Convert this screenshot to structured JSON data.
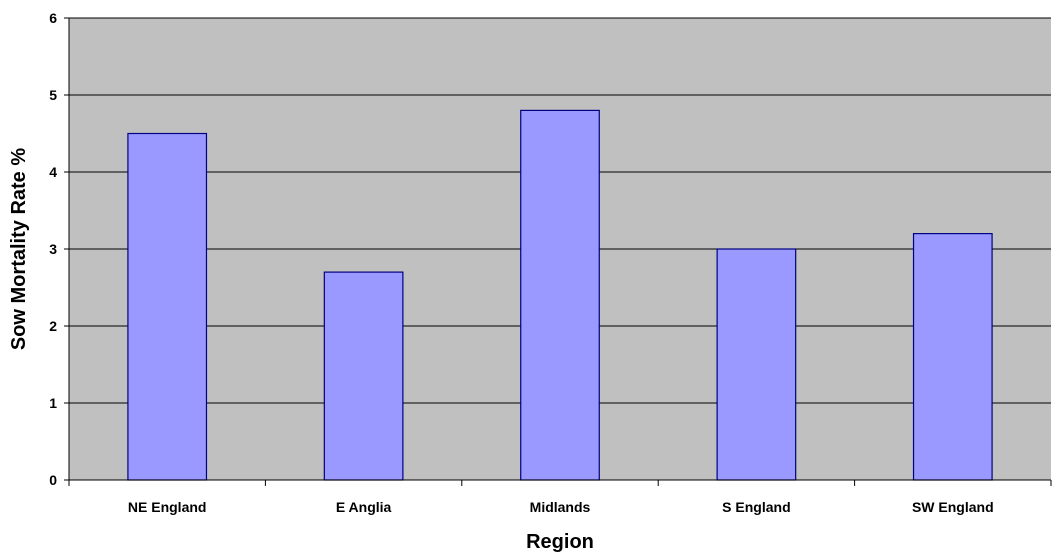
{
  "chart_data": {
    "type": "bar",
    "title": "",
    "xlabel": "Region",
    "ylabel": "Sow Mortality Rate %",
    "categories": [
      "NE England",
      "E Anglia",
      "Midlands",
      "S England",
      "SW England"
    ],
    "values": [
      4.5,
      2.7,
      4.8,
      3.0,
      3.2
    ],
    "ylim": [
      0,
      6
    ],
    "yticks": [
      "0",
      "1",
      "2",
      "3",
      "4",
      "5",
      "6"
    ],
    "grid": true,
    "legend": "none",
    "colors": {
      "plot_background": "#C0C0C0",
      "bar_fill": "#9999FF",
      "bar_stroke": "#000080",
      "gridline": "#000000"
    }
  }
}
